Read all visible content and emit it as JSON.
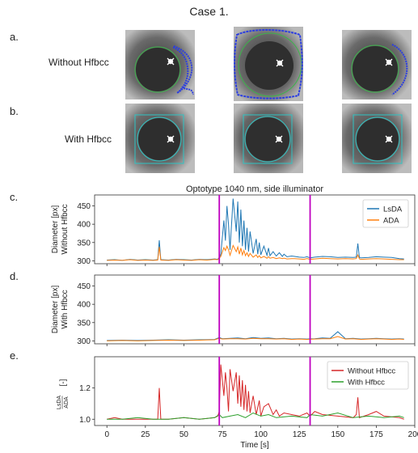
{
  "figure": {
    "case_title": "Case 1.",
    "panel_letters": [
      "a.",
      "b.",
      "c.",
      "d.",
      "e."
    ],
    "row_a_label": "Without Hfbcc",
    "row_b_label": "With Hfbcc"
  },
  "colors": {
    "lsda": "#1f77b4",
    "ada": "#ff7f0e",
    "without": "#d62728",
    "with": "#2ca02c",
    "event_line": "#bf00bf",
    "pupil_fit": "#3cb44b",
    "roi_box": "#2fc4c4",
    "noise_contour": "#2c3ee0"
  },
  "icons": [
    "eye-image",
    "glint-icon",
    "pupil-fit-circle",
    "roi-box-icon"
  ],
  "chart_data": [
    {
      "type": "line",
      "title": "Optotype 1040 nm, side illuminator",
      "xlabel": "",
      "ylabel": "Diameter [px]\nWithout Hfbcc",
      "ylabel_lines": [
        "Diameter [px]",
        "Without Hfbcc"
      ],
      "xlim": [
        -8,
        200
      ],
      "ylim": [
        292,
        480
      ],
      "yticks": [
        "300",
        "350",
        "400",
        "450"
      ],
      "xticks": [
        "0",
        "25",
        "50",
        "75",
        "100",
        "125",
        "150",
        "175",
        "200"
      ],
      "event_lines_x": [
        73,
        132
      ],
      "legend": [
        "LsDA",
        "ADA"
      ],
      "legend_placement": "top-right",
      "series": [
        {
          "name": "LsDA",
          "x": [
            0,
            5,
            10,
            15,
            20,
            25,
            30,
            33,
            34,
            35,
            40,
            45,
            50,
            55,
            60,
            65,
            70,
            72,
            73,
            74,
            76,
            77,
            78,
            79,
            80,
            82,
            84,
            85,
            86,
            87,
            88,
            89,
            90,
            91,
            92,
            93,
            95,
            97,
            98,
            99,
            100,
            102,
            104,
            105,
            106,
            108,
            110,
            112,
            114,
            115,
            117,
            120,
            122,
            125,
            128,
            130,
            132,
            135,
            140,
            145,
            150,
            155,
            160,
            162,
            163,
            164,
            165,
            170,
            175,
            180,
            185,
            190,
            193
          ],
          "y": [
            302,
            303,
            301,
            304,
            302,
            303,
            302,
            303,
            356,
            303,
            302,
            304,
            303,
            302,
            304,
            303,
            305,
            304,
            309,
            318,
            410,
            355,
            450,
            400,
            330,
            470,
            380,
            462,
            350,
            440,
            340,
            410,
            330,
            390,
            325,
            380,
            320,
            360,
            318,
            350,
            316,
            340,
            315,
            335,
            314,
            325,
            313,
            322,
            312,
            318,
            311,
            313,
            312,
            310,
            309,
            311,
            308,
            310,
            312,
            311,
            309,
            310,
            309,
            310,
            347,
            309,
            308,
            309,
            311,
            310,
            309,
            306,
            305
          ]
        },
        {
          "name": "ADA",
          "x": [
            0,
            5,
            10,
            15,
            20,
            25,
            30,
            33,
            34,
            35,
            40,
            45,
            50,
            55,
            60,
            65,
            70,
            72,
            73,
            74,
            76,
            77,
            78,
            79,
            80,
            82,
            84,
            85,
            86,
            87,
            88,
            89,
            90,
            91,
            92,
            93,
            95,
            97,
            98,
            99,
            100,
            102,
            104,
            105,
            106,
            108,
            110,
            112,
            114,
            115,
            117,
            120,
            122,
            125,
            128,
            130,
            132,
            135,
            140,
            145,
            150,
            155,
            160,
            162,
            163,
            164,
            165,
            170,
            175,
            180,
            185,
            190,
            193
          ],
          "y": [
            301,
            302,
            301,
            303,
            301,
            302,
            301,
            302,
            338,
            302,
            301,
            303,
            302,
            301,
            303,
            302,
            304,
            303,
            307,
            312,
            336,
            328,
            340,
            330,
            315,
            342,
            325,
            338,
            318,
            335,
            316,
            328,
            314,
            322,
            312,
            320,
            310,
            316,
            309,
            314,
            308,
            312,
            307,
            311,
            307,
            309,
            306,
            308,
            306,
            307,
            305,
            306,
            306,
            305,
            304,
            306,
            304,
            305,
            307,
            306,
            305,
            306,
            305,
            306,
            316,
            305,
            304,
            305,
            306,
            305,
            304,
            303,
            303
          ]
        }
      ]
    },
    {
      "type": "line",
      "title": "",
      "xlabel": "",
      "ylabel": "Diameter [px]\nWith Hfbcc",
      "ylabel_lines": [
        "Diameter [px]",
        "With Hfbcc"
      ],
      "xlim": [
        -8,
        200
      ],
      "ylim": [
        292,
        480
      ],
      "yticks": [
        "300",
        "350",
        "400",
        "450"
      ],
      "xticks": [
        "0",
        "25",
        "50",
        "75",
        "100",
        "125",
        "150",
        "175",
        "200"
      ],
      "event_lines_x": [
        73,
        132
      ],
      "series": [
        {
          "name": "LsDA",
          "x": [
            0,
            10,
            20,
            30,
            40,
            50,
            60,
            70,
            73,
            75,
            80,
            85,
            90,
            95,
            100,
            105,
            110,
            115,
            120,
            125,
            130,
            135,
            140,
            145,
            150,
            155,
            160,
            165,
            170,
            175,
            180,
            185,
            190,
            193
          ],
          "y": [
            301,
            302,
            301,
            302,
            303,
            302,
            303,
            304,
            309,
            306,
            307,
            308,
            306,
            309,
            307,
            308,
            306,
            307,
            305,
            306,
            305,
            306,
            308,
            307,
            325,
            306,
            307,
            305,
            306,
            307,
            306,
            305,
            306,
            305
          ]
        },
        {
          "name": "ADA",
          "x": [
            0,
            10,
            20,
            30,
            40,
            50,
            60,
            70,
            73,
            75,
            80,
            85,
            90,
            95,
            100,
            105,
            110,
            115,
            120,
            125,
            130,
            135,
            140,
            145,
            150,
            155,
            160,
            165,
            170,
            175,
            180,
            185,
            190,
            193
          ],
          "y": [
            300,
            301,
            300,
            301,
            302,
            301,
            302,
            303,
            307,
            305,
            306,
            306,
            305,
            307,
            306,
            306,
            305,
            306,
            304,
            305,
            304,
            305,
            306,
            306,
            312,
            305,
            306,
            304,
            305,
            306,
            305,
            304,
            305,
            304
          ]
        }
      ]
    },
    {
      "type": "line",
      "title": "",
      "xlabel": "Time [s]",
      "ylabel": "LsDA/ADA [-]",
      "ylabel_ratio": [
        "LsDA",
        "ADA"
      ],
      "ylabel_unit": "[-]",
      "xlim": [
        -8,
        200
      ],
      "ylim": [
        0.96,
        1.4
      ],
      "yticks": [
        "1.0",
        "1.2"
      ],
      "xticks": [
        "0",
        "25",
        "50",
        "75",
        "100",
        "125",
        "150",
        "175",
        "200"
      ],
      "event_lines_x": [
        73,
        132
      ],
      "legend": [
        "Without Hfbcc",
        "With Hfbcc"
      ],
      "legend_placement": "top-right",
      "series": [
        {
          "name": "Without Hfbcc",
          "x": [
            0,
            5,
            10,
            20,
            30,
            33,
            34,
            35,
            40,
            50,
            60,
            70,
            72,
            73,
            74,
            76,
            77,
            78,
            79,
            80,
            82,
            84,
            85,
            86,
            87,
            88,
            89,
            90,
            91,
            92,
            93,
            95,
            97,
            99,
            100,
            102,
            105,
            108,
            110,
            112,
            115,
            120,
            125,
            130,
            132,
            135,
            140,
            150,
            160,
            162,
            163,
            164,
            170,
            175,
            180,
            190,
            193
          ],
          "y": [
            1.0,
            1.01,
            1.0,
            1.0,
            1.0,
            1.0,
            1.2,
            1.0,
            1.0,
            1.01,
            1.0,
            1.01,
            1.02,
            1.05,
            1.35,
            1.15,
            1.3,
            1.2,
            1.05,
            1.32,
            1.18,
            1.3,
            1.1,
            1.28,
            1.08,
            1.25,
            1.06,
            1.22,
            1.05,
            1.18,
            1.04,
            1.15,
            1.03,
            1.12,
            1.02,
            1.08,
            1.1,
            1.03,
            1.06,
            1.02,
            1.04,
            1.03,
            1.02,
            1.04,
            1.02,
            1.05,
            1.03,
            1.02,
            1.01,
            1.03,
            1.14,
            1.01,
            1.03,
            1.05,
            1.02,
            1.01,
            1.0
          ]
        },
        {
          "name": "With Hfbcc",
          "x": [
            0,
            10,
            20,
            30,
            40,
            50,
            60,
            70,
            73,
            75,
            80,
            85,
            90,
            95,
            100,
            105,
            110,
            120,
            130,
            132,
            140,
            150,
            160,
            170,
            180,
            190,
            193
          ],
          "y": [
            1.0,
            1.0,
            1.01,
            1.0,
            1.0,
            1.01,
            1.0,
            1.01,
            1.03,
            1.01,
            1.02,
            1.03,
            1.01,
            1.04,
            1.02,
            1.03,
            1.01,
            1.02,
            1.01,
            1.03,
            1.02,
            1.04,
            1.01,
            1.02,
            1.01,
            1.02,
            1.01
          ]
        }
      ]
    }
  ]
}
